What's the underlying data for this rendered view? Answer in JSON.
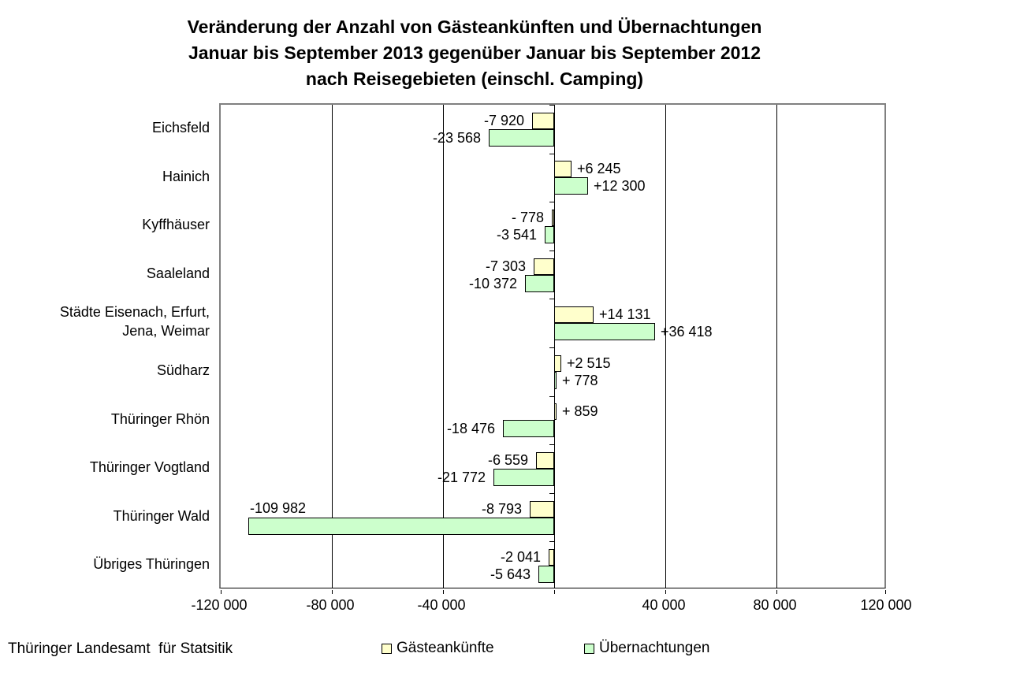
{
  "title": "Veränderung der Anzahl von Gästeankünften und Übernachtungen\nJanuar bis September 2013 gegenüber Januar bis September 2012\nnach Reisegebieten (einschl. Camping)",
  "footer": "Thüringer Landesamt  für Statsitik",
  "legend": {
    "items": [
      {
        "label": "Gästeankünfte",
        "color": "#FFFFCC"
      },
      {
        "label": "Übernachtungen",
        "color": "#CCFFCC"
      }
    ]
  },
  "chart_data": {
    "type": "bar",
    "orientation": "horizontal",
    "title": "Veränderung der Anzahl von Gästeankünften und Übernachtungen Januar bis September 2013 gegenüber Januar bis September 2012 nach Reisegebieten (einschl. Camping)",
    "categories": [
      "Eichsfeld",
      "Hainich",
      "Kyffhäuser",
      "Saaleland",
      "Städte Eisenach, Erfurt,\nJena, Weimar",
      "Südharz",
      "Thüringer Rhön",
      "Thüringer Vogtland",
      "Thüringer Wald",
      "Übriges Thüringen"
    ],
    "series": [
      {
        "name": "Gästeankünfte",
        "color": "#FFFFCC",
        "values": [
          -7920,
          6245,
          -778,
          -7303,
          14131,
          2515,
          859,
          -6559,
          -8793,
          -2041
        ],
        "labels": [
          "-7 920",
          "+6 245",
          "- 778",
          "-7 303",
          "+14 131",
          "+2 515",
          "+ 859",
          "-6 559",
          "-8 793",
          "-2 041"
        ],
        "above_left_labels": []
      },
      {
        "name": "Übernachtungen",
        "color": "#CCFFCC",
        "values": [
          -23568,
          12300,
          -3541,
          -10372,
          36418,
          778,
          -18476,
          -21772,
          -109982,
          -5643
        ],
        "labels": [
          "-23 568",
          "+12 300",
          "-3 541",
          "-10 372",
          "+36 418",
          "+ 778",
          "-18 476",
          "-21 772",
          "-109 982",
          "-5 643"
        ],
        "above_left_labels": [
          8
        ]
      }
    ],
    "xlim": [
      -120000,
      120000
    ],
    "ticks": [
      {
        "value": -120000,
        "label": "-120 000"
      },
      {
        "value": -80000,
        "label": "-80 000"
      },
      {
        "value": -40000,
        "label": "-40 000"
      },
      {
        "value": 0,
        "label": ""
      },
      {
        "value": 40000,
        "label": "40 000"
      },
      {
        "value": 80000,
        "label": "80 000"
      },
      {
        "value": 120000,
        "label": "120 000"
      }
    ],
    "grid": true,
    "legend_position": "bottom"
  }
}
